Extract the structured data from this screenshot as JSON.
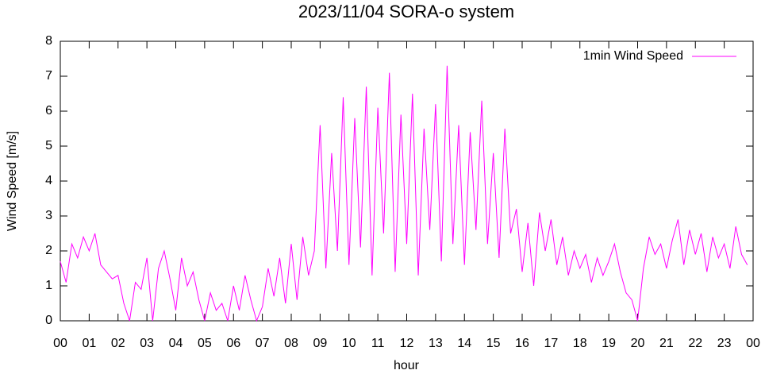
{
  "chart_data": {
    "type": "line",
    "title": "2023/11/04 SORA-o system",
    "xlabel": "hour",
    "ylabel": "Wind Speed [m/s]",
    "x": [
      0,
      0.2,
      0.4,
      0.6,
      0.8,
      1,
      1.2,
      1.4,
      1.6,
      1.8,
      2,
      2.2,
      2.4,
      2.6,
      2.8,
      3,
      3.2,
      3.4,
      3.6,
      3.8,
      4,
      4.2,
      4.4,
      4.6,
      4.8,
      5,
      5.2,
      5.4,
      5.6,
      5.8,
      6,
      6.2,
      6.4,
      6.6,
      6.8,
      7,
      7.2,
      7.4,
      7.6,
      7.8,
      8,
      8.2,
      8.4,
      8.6,
      8.8,
      9,
      9.2,
      9.4,
      9.6,
      9.8,
      10,
      10.2,
      10.4,
      10.6,
      10.8,
      11,
      11.2,
      11.4,
      11.6,
      11.8,
      12,
      12.2,
      12.4,
      12.6,
      12.8,
      13,
      13.2,
      13.4,
      13.6,
      13.8,
      14,
      14.2,
      14.4,
      14.6,
      14.8,
      15,
      15.2,
      15.4,
      15.6,
      15.8,
      16,
      16.2,
      16.4,
      16.6,
      16.8,
      17,
      17.2,
      17.4,
      17.6,
      17.8,
      18,
      18.2,
      18.4,
      18.6,
      18.8,
      19,
      19.2,
      19.4,
      19.6,
      19.8,
      20,
      20.2,
      20.4,
      20.6,
      20.8,
      21,
      21.2,
      21.4,
      21.6,
      21.8,
      22,
      22.2,
      22.4,
      22.6,
      22.8,
      23,
      23.2,
      23.4,
      23.6,
      23.8
    ],
    "series": [
      {
        "name": "1min Wind Speed",
        "color": "#ff00ff",
        "values": [
          1.7,
          1.1,
          2.2,
          1.8,
          2.4,
          2.0,
          2.5,
          1.6,
          1.4,
          1.2,
          1.3,
          0.5,
          0.0,
          1.1,
          0.9,
          1.8,
          0.0,
          1.5,
          2.0,
          1.2,
          0.3,
          1.8,
          1.0,
          1.4,
          0.6,
          0.0,
          0.8,
          0.3,
          0.5,
          0.0,
          1.0,
          0.3,
          1.3,
          0.6,
          0.0,
          0.4,
          1.5,
          0.7,
          1.8,
          0.5,
          2.2,
          0.6,
          2.4,
          1.3,
          2.0,
          5.6,
          1.5,
          4.8,
          2.0,
          6.4,
          1.6,
          5.8,
          2.1,
          6.7,
          1.3,
          6.1,
          2.5,
          7.1,
          1.4,
          5.9,
          2.2,
          6.5,
          1.3,
          5.5,
          2.6,
          6.2,
          1.7,
          7.3,
          2.2,
          5.6,
          1.6,
          5.4,
          2.6,
          6.3,
          2.2,
          4.8,
          1.8,
          5.5,
          2.5,
          3.2,
          1.4,
          2.8,
          1.0,
          3.1,
          2.0,
          2.9,
          1.6,
          2.4,
          1.3,
          2.0,
          1.5,
          1.9,
          1.1,
          1.8,
          1.3,
          1.7,
          2.2,
          1.4,
          0.8,
          0.6,
          0.0,
          1.5,
          2.4,
          1.9,
          2.2,
          1.5,
          2.3,
          2.9,
          1.6,
          2.6,
          1.9,
          2.5,
          1.4,
          2.4,
          1.8,
          2.2,
          1.5,
          2.7,
          1.9,
          1.6
        ]
      }
    ],
    "xlim": [
      0,
      24
    ],
    "xticks": [
      {
        "value": 0,
        "label": "00"
      },
      {
        "value": 1,
        "label": "01"
      },
      {
        "value": 2,
        "label": "02"
      },
      {
        "value": 3,
        "label": "03"
      },
      {
        "value": 4,
        "label": "04"
      },
      {
        "value": 5,
        "label": "05"
      },
      {
        "value": 6,
        "label": "06"
      },
      {
        "value": 7,
        "label": "07"
      },
      {
        "value": 8,
        "label": "08"
      },
      {
        "value": 9,
        "label": "09"
      },
      {
        "value": 10,
        "label": "10"
      },
      {
        "value": 11,
        "label": "11"
      },
      {
        "value": 12,
        "label": "12"
      },
      {
        "value": 13,
        "label": "13"
      },
      {
        "value": 14,
        "label": "14"
      },
      {
        "value": 15,
        "label": "15"
      },
      {
        "value": 16,
        "label": "16"
      },
      {
        "value": 17,
        "label": "17"
      },
      {
        "value": 18,
        "label": "18"
      },
      {
        "value": 19,
        "label": "19"
      },
      {
        "value": 20,
        "label": "20"
      },
      {
        "value": 21,
        "label": "21"
      },
      {
        "value": 22,
        "label": "22"
      },
      {
        "value": 23,
        "label": "23"
      },
      {
        "value": 24,
        "label": "00"
      }
    ],
    "ylim": [
      0,
      8
    ],
    "yticks": [
      0,
      1,
      2,
      3,
      4,
      5,
      6,
      7,
      8
    ],
    "legend": "top-right",
    "grid": false
  }
}
